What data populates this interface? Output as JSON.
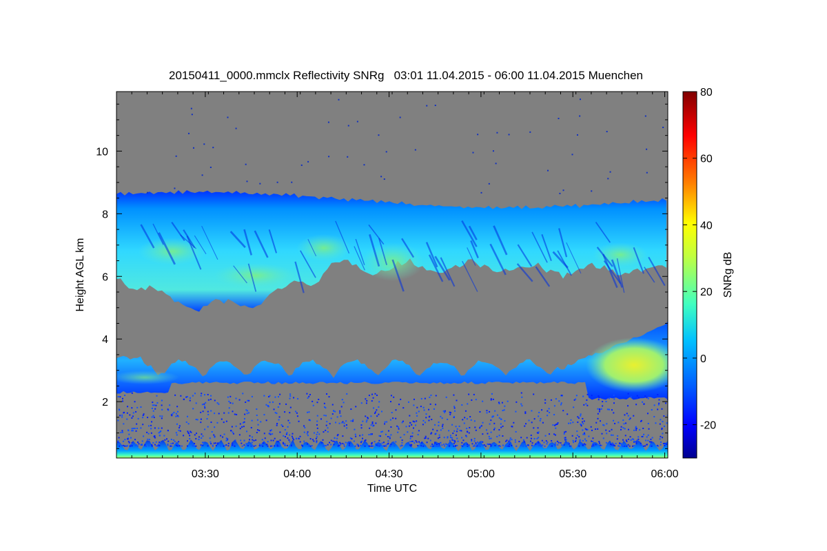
{
  "chart_data": {
    "type": "heatmap",
    "title": "20150411_0000.mmclx Reflectivity SNRg   03:01 11.04.2015 - 06:00 11.04.2015 Muenchen",
    "xlabel": "Time UTC",
    "ylabel": "Height AGL km",
    "x_ticks": [
      "03:30",
      "04:00",
      "04:30",
      "05:00",
      "05:30",
      "06:00"
    ],
    "x_range": [
      "03:01",
      "06:01"
    ],
    "y_ticks": [
      2,
      4,
      6,
      8,
      10
    ],
    "y_range": [
      0.2,
      11.9
    ],
    "background_color": "#808080",
    "colorbar": {
      "label": "SNRg dB",
      "ticks": [
        -20,
        0,
        20,
        40,
        60,
        80
      ],
      "range": [
        -30,
        80
      ],
      "colormap": [
        "#00008f",
        "#0000ff",
        "#0080ff",
        "#00ffff",
        "#80ff80",
        "#ffff00",
        "#ff8000",
        "#ff0000",
        "#800000"
      ]
    },
    "features": [
      {
        "layer": "upper cloud",
        "time_range": [
          "03:01",
          "06:00"
        ],
        "base_km": [
          4.9,
          6.3
        ],
        "top_km": [
          8.2,
          8.7
        ],
        "snr_db": [
          -20,
          25
        ]
      },
      {
        "layer": "mid cloud",
        "time_range": [
          "03:01",
          "06:00"
        ],
        "base_km": [
          2.0,
          2.6
        ],
        "top_km": [
          2.8,
          4.3
        ],
        "snr_db": [
          -20,
          40
        ]
      },
      {
        "layer": "near-surface echoes",
        "time_range": [
          "03:01",
          "06:00"
        ],
        "base_km": [
          0.2,
          0.2
        ],
        "top_km": [
          0.6,
          1.2
        ],
        "snr_db": [
          -20,
          30
        ]
      }
    ]
  }
}
